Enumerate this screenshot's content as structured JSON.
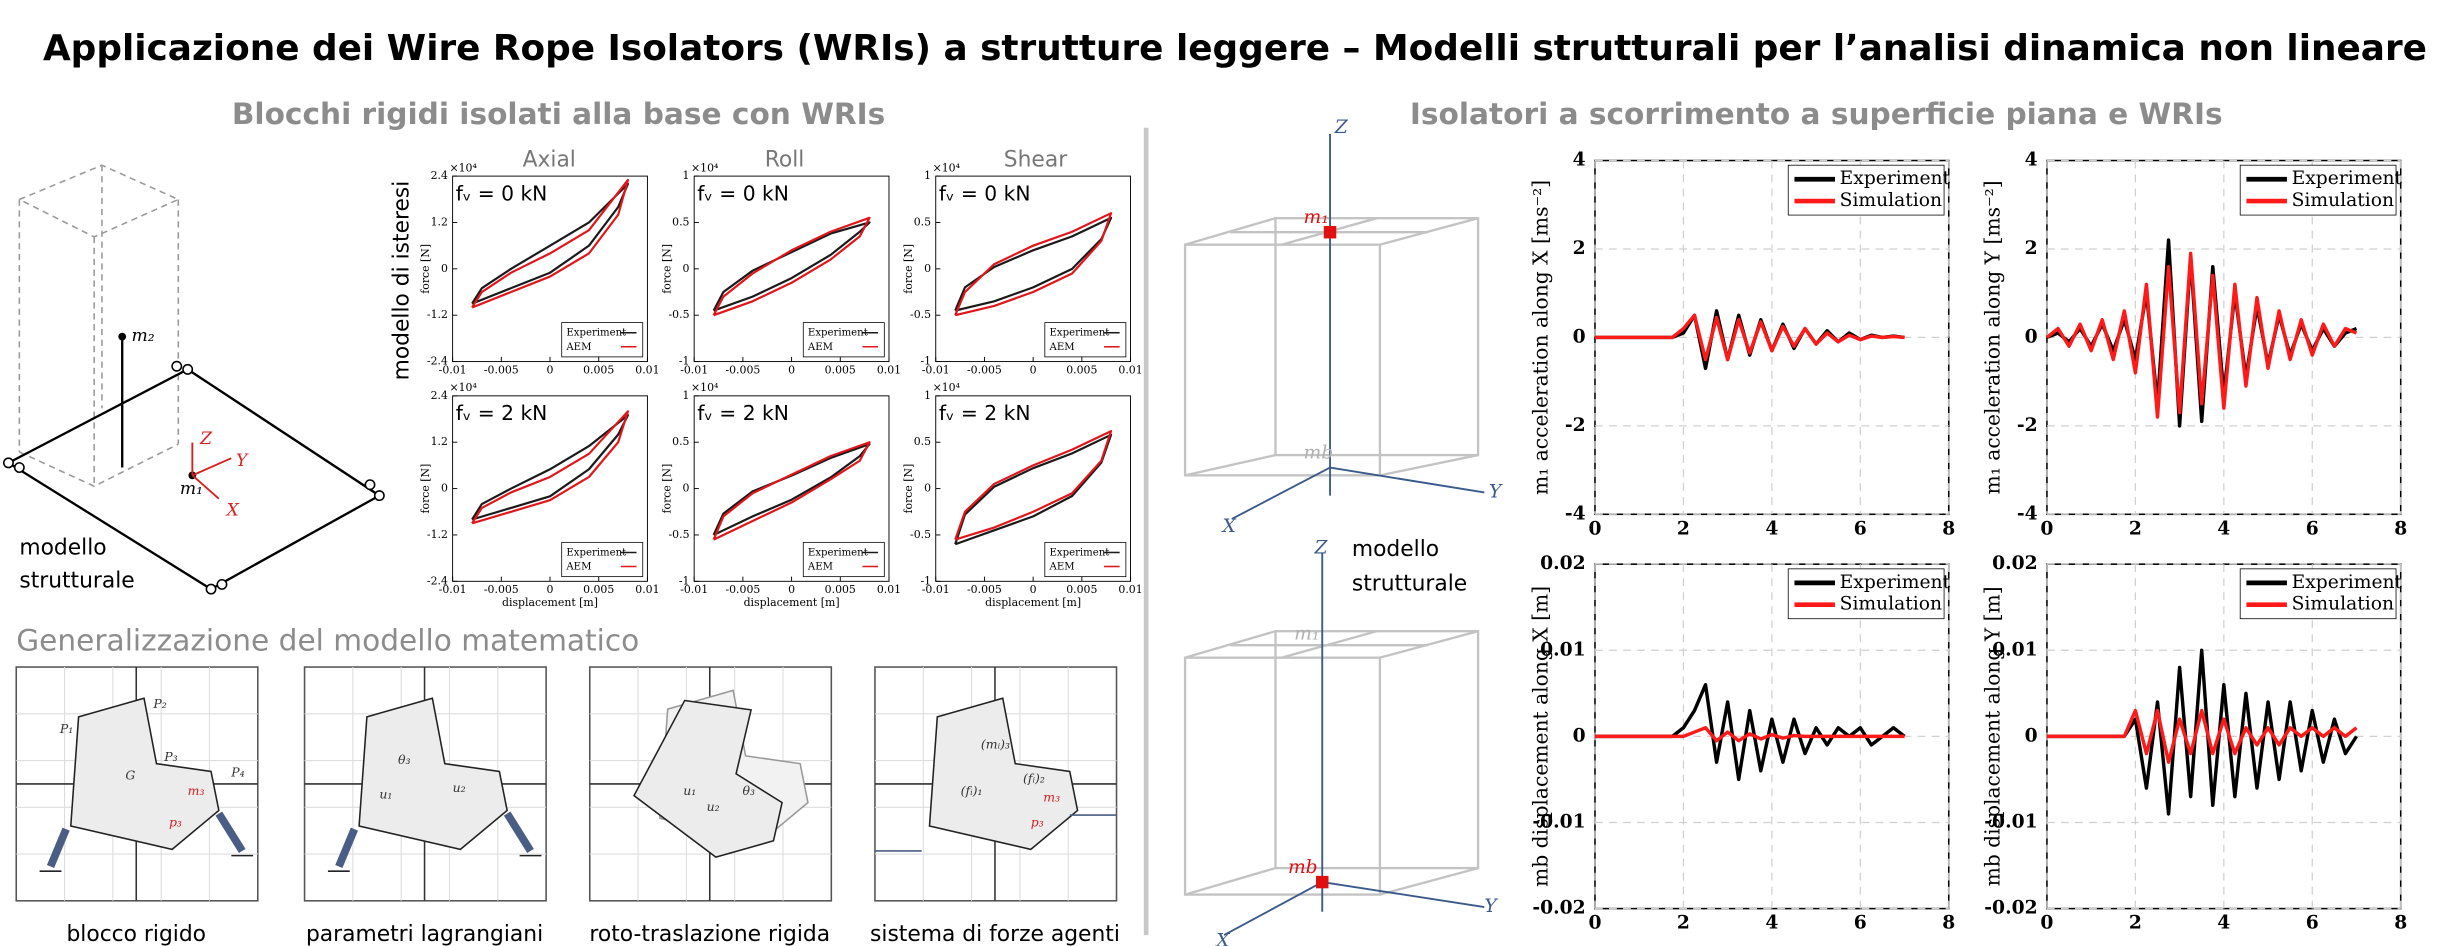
{
  "title": "Applicazione dei Wire Rope Isolators (WRIs) a strutture leggere – Modelli strutturali per l’analisi dinamica non lineare",
  "left": {
    "heading": "Blocchi rigidi isolati alla base con WRIs",
    "model_label": [
      "modello",
      "strutturale"
    ],
    "structure_labels": [
      "m₂",
      "m₁",
      "Z",
      "Y",
      "X"
    ],
    "hysteresis_label": "modello di isteresi",
    "columns": [
      "Axial",
      "Roll",
      "Shear"
    ],
    "plots": [
      {
        "type": "line",
        "label": "fᵥ = 0 kN",
        "exponent": "×10⁴",
        "ylabel": "force [N]",
        "xlim": [
          -0.01,
          0.01
        ],
        "xticks": [
          -0.01,
          -0.005,
          0,
          0.005,
          0.01
        ],
        "ylim": [
          -2.4,
          2.4
        ],
        "yticks": [
          -2.4,
          -1.2,
          0,
          1.2,
          2.4
        ],
        "x": [
          -0.008,
          -0.004,
          0,
          0.004,
          0.007,
          0.008,
          0.004,
          0,
          -0.004,
          -0.007,
          -0.008
        ],
        "series": [
          {
            "name": "Experiment",
            "color": "#1a1a1a",
            "values": [
              -0.9,
              -0.5,
              -0.1,
              0.6,
              1.6,
              2.2,
              1.2,
              0.6,
              0,
              -0.5,
              -0.9
            ]
          },
          {
            "name": "AEM",
            "color": "#e0161b",
            "values": [
              -1.0,
              -0.6,
              -0.2,
              0.4,
              1.4,
              2.3,
              1.0,
              0.4,
              -0.1,
              -0.6,
              -1.0
            ]
          }
        ]
      },
      {
        "type": "line",
        "label": "fᵥ = 0 kN",
        "exponent": "×10⁴",
        "ylabel": "force [N]",
        "xlim": [
          -0.01,
          0.01
        ],
        "xticks": [
          -0.01,
          -0.005,
          0,
          0.005,
          0.01
        ],
        "ylim": [
          -1,
          1
        ],
        "yticks": [
          -1,
          -0.5,
          0,
          0.5,
          1
        ],
        "x": [
          -0.008,
          -0.004,
          0,
          0.004,
          0.007,
          0.008,
          0.004,
          0,
          -0.004,
          -0.007,
          -0.008
        ],
        "series": [
          {
            "name": "Experiment",
            "color": "#1a1a1a",
            "values": [
              -0.45,
              -0.3,
              -0.1,
              0.15,
              0.4,
              0.5,
              0.38,
              0.18,
              -0.02,
              -0.25,
              -0.45
            ]
          },
          {
            "name": "AEM",
            "color": "#e0161b",
            "values": [
              -0.5,
              -0.35,
              -0.15,
              0.1,
              0.35,
              0.55,
              0.4,
              0.2,
              -0.05,
              -0.3,
              -0.5
            ]
          }
        ]
      },
      {
        "type": "line",
        "label": "fᵥ = 0 kN",
        "exponent": "×10⁴",
        "ylabel": "force [N]",
        "xlim": [
          -0.01,
          0.01
        ],
        "xticks": [
          -0.01,
          -0.005,
          0,
          0.005,
          0.01
        ],
        "ylim": [
          -1,
          1
        ],
        "yticks": [
          -1,
          -0.5,
          0,
          0.5,
          1
        ],
        "x": [
          -0.008,
          -0.004,
          0,
          0.004,
          0.007,
          0.008,
          0.004,
          0,
          -0.004,
          -0.007,
          -0.008
        ],
        "series": [
          {
            "name": "Experiment",
            "color": "#1a1a1a",
            "values": [
              -0.45,
              -0.35,
              -0.2,
              0,
              0.32,
              0.55,
              0.35,
              0.2,
              0.02,
              -0.2,
              -0.45
            ]
          },
          {
            "name": "AEM",
            "color": "#e0161b",
            "values": [
              -0.5,
              -0.4,
              -0.25,
              -0.05,
              0.3,
              0.6,
              0.4,
              0.25,
              0.05,
              -0.25,
              -0.5
            ]
          }
        ]
      },
      {
        "type": "line",
        "label": "fᵥ = 2 kN",
        "exponent": "×10⁴",
        "ylabel": "force [N]",
        "xlabel": "displacement [m]",
        "xlim": [
          -0.01,
          0.01
        ],
        "xticks": [
          -0.01,
          -0.005,
          0,
          0.005,
          0.01
        ],
        "ylim": [
          -2.4,
          2.4
        ],
        "yticks": [
          -2.4,
          -1.2,
          0,
          1.2,
          2.4
        ],
        "x": [
          -0.008,
          -0.004,
          0,
          0.004,
          0.007,
          0.008,
          0.004,
          0,
          -0.004,
          -0.007,
          -0.008
        ],
        "series": [
          {
            "name": "Experiment",
            "color": "#1a1a1a",
            "values": [
              -0.8,
              -0.5,
              -0.2,
              0.5,
              1.4,
              1.9,
              1.1,
              0.5,
              0,
              -0.4,
              -0.8
            ]
          },
          {
            "name": "AEM",
            "color": "#e0161b",
            "values": [
              -0.9,
              -0.6,
              -0.3,
              0.3,
              1.2,
              2.0,
              0.9,
              0.3,
              -0.1,
              -0.5,
              -0.9
            ]
          }
        ]
      },
      {
        "type": "line",
        "label": "fᵥ = 2 kN",
        "exponent": "×10⁴",
        "ylabel": "force [N]",
        "xlabel": "displacement [m]",
        "xlim": [
          -0.01,
          0.01
        ],
        "xticks": [
          -0.01,
          -0.005,
          0,
          0.005,
          0.01
        ],
        "ylim": [
          -1,
          1
        ],
        "yticks": [
          -1,
          -0.5,
          0,
          0.5,
          1
        ],
        "x": [
          -0.008,
          -0.004,
          0,
          0.004,
          0.007,
          0.008,
          0.004,
          0,
          -0.004,
          -0.007,
          -0.008
        ],
        "series": [
          {
            "name": "Experiment",
            "color": "#1a1a1a",
            "values": [
              -0.5,
              -0.3,
              -0.12,
              0.12,
              0.35,
              0.48,
              0.33,
              0.14,
              -0.03,
              -0.27,
              -0.5
            ]
          },
          {
            "name": "AEM",
            "color": "#e0161b",
            "values": [
              -0.55,
              -0.35,
              -0.15,
              0.1,
              0.3,
              0.5,
              0.35,
              0.15,
              -0.05,
              -0.3,
              -0.55
            ]
          }
        ]
      },
      {
        "type": "line",
        "label": "fᵥ = 2 kN",
        "exponent": "×10⁴",
        "ylabel": "force [N]",
        "xlabel": "displacement [m]",
        "xlim": [
          -0.01,
          0.01
        ],
        "xticks": [
          -0.01,
          -0.005,
          0,
          0.005,
          0.01
        ],
        "ylim": [
          -1,
          1
        ],
        "yticks": [
          -1,
          -0.5,
          0,
          0.5,
          1
        ],
        "x": [
          -0.008,
          -0.004,
          0,
          0.004,
          0.007,
          0.008,
          0.004,
          0,
          -0.004,
          -0.007,
          -0.008
        ],
        "series": [
          {
            "name": "Experiment",
            "color": "#1a1a1a",
            "values": [
              -0.6,
              -0.45,
              -0.3,
              -0.08,
              0.28,
              0.58,
              0.38,
              0.22,
              0.02,
              -0.28,
              -0.6
            ]
          },
          {
            "name": "AEM",
            "color": "#e0161b",
            "values": [
              -0.55,
              -0.42,
              -0.25,
              -0.05,
              0.3,
              0.62,
              0.42,
              0.25,
              0.05,
              -0.25,
              -0.55
            ]
          }
        ]
      }
    ],
    "generalization": {
      "heading": "Generalizzazione del modello matematico",
      "diagrams": [
        {
          "caption": "blocco rigido",
          "labels": [
            "P₁",
            "P₂",
            "P₃",
            "P₄",
            "G",
            "m₃",
            "p₃"
          ]
        },
        {
          "caption": "parametri lagrangiani",
          "labels": [
            "θ₃",
            "u₁",
            "u₂"
          ]
        },
        {
          "caption": "roto-traslazione rigida",
          "labels": [
            "u₁",
            "u₂",
            "θ₃"
          ]
        },
        {
          "caption": "sistema di forze agenti",
          "labels": [
            "(mᵢ)₃",
            "(fᵢ)₁",
            "(fᵢ)₂",
            "m₃",
            "p₃"
          ]
        }
      ]
    }
  },
  "right": {
    "heading": "Isolatori a scorrimento a superficie piana e WRIs",
    "model_label": [
      "modello",
      "strutturale"
    ],
    "frame_labels": [
      "Z",
      "X",
      "Y",
      "m₁",
      "mb"
    ],
    "charts": [
      {
        "type": "line",
        "ylabel": "m₁ acceleration along X [ms⁻²]",
        "legend": "upper right",
        "grid": true,
        "xlim": [
          0,
          8
        ],
        "xticks": [
          0,
          2,
          4,
          6,
          8
        ],
        "ylim": [
          -4,
          4
        ],
        "yticks": [
          -4,
          -2,
          0,
          2,
          4
        ],
        "x": [
          0,
          0.25,
          0.5,
          0.75,
          1,
          1.25,
          1.5,
          1.75,
          2,
          2.25,
          2.5,
          2.75,
          3,
          3.25,
          3.5,
          3.75,
          4,
          4.25,
          4.5,
          4.75,
          5,
          5.25,
          5.5,
          5.75,
          6,
          6.25,
          6.5,
          6.75,
          7
        ],
        "series": [
          {
            "name": "Experiment",
            "color": "#000000",
            "values": [
              0,
              0,
              0,
              0,
              0,
              0,
              0,
              0,
              0.1,
              0.5,
              -0.7,
              0.6,
              -0.5,
              0.5,
              -0.4,
              0.4,
              -0.3,
              0.3,
              -0.25,
              0.2,
              -0.15,
              0.15,
              -0.1,
              0.1,
              -0.05,
              0.05,
              0,
              0.03,
              0
            ]
          },
          {
            "name": "Simulation",
            "color": "#ff1a1a",
            "values": [
              0,
              0,
              0,
              0,
              0,
              0,
              0,
              0,
              0.2,
              0.5,
              -0.5,
              0.45,
              -0.5,
              0.4,
              -0.35,
              0.35,
              -0.3,
              0.25,
              -0.2,
              0.2,
              -0.15,
              0.1,
              -0.1,
              0.05,
              -0.05,
              0.03,
              0,
              0.02,
              0
            ]
          }
        ]
      },
      {
        "type": "line",
        "ylabel": "m₁ acceleration along Y [ms⁻²]",
        "legend": "upper right",
        "grid": true,
        "xlim": [
          0,
          8
        ],
        "xticks": [
          0,
          2,
          4,
          6,
          8
        ],
        "ylim": [
          -4,
          4
        ],
        "yticks": [
          -4,
          -2,
          0,
          2,
          4
        ],
        "x": [
          0,
          0.25,
          0.5,
          0.75,
          1,
          1.25,
          1.5,
          1.75,
          2,
          2.25,
          2.5,
          2.75,
          3,
          3.25,
          3.5,
          3.75,
          4,
          4.25,
          4.5,
          4.75,
          5,
          5.25,
          5.5,
          5.75,
          6,
          6.25,
          6.5,
          6.75,
          7
        ],
        "series": [
          {
            "name": "Experiment",
            "color": "#000000",
            "values": [
              0,
              0.1,
              -0.1,
              0.2,
              -0.2,
              0.3,
              -0.3,
              0.4,
              -0.5,
              1.0,
              -1.5,
              2.2,
              -2.0,
              1.8,
              -1.9,
              1.6,
              -1.3,
              1.0,
              -0.9,
              0.7,
              -0.6,
              0.5,
              -0.4,
              0.3,
              -0.3,
              0.2,
              -0.2,
              0.1,
              0.2
            ]
          },
          {
            "name": "Simulation",
            "color": "#ff1a1a",
            "values": [
              0,
              0.2,
              -0.2,
              0.3,
              -0.3,
              0.4,
              -0.5,
              0.6,
              -0.8,
              1.2,
              -1.8,
              1.6,
              -1.7,
              1.9,
              -1.5,
              1.4,
              -1.6,
              1.2,
              -1.1,
              0.9,
              -0.7,
              0.6,
              -0.5,
              0.4,
              -0.4,
              0.3,
              -0.2,
              0.2,
              0.1
            ]
          }
        ]
      },
      {
        "type": "line",
        "ylabel": "mb displacement along X [m]",
        "legend": "upper right",
        "grid": true,
        "xlim": [
          0,
          8
        ],
        "xticks": [
          0,
          2,
          4,
          6,
          8
        ],
        "ylim": [
          -0.02,
          0.02
        ],
        "yticks": [
          -0.02,
          -0.01,
          0,
          0.01,
          0.02
        ],
        "x": [
          0,
          0.25,
          0.5,
          0.75,
          1,
          1.25,
          1.5,
          1.75,
          2,
          2.25,
          2.5,
          2.75,
          3,
          3.25,
          3.5,
          3.75,
          4,
          4.25,
          4.5,
          4.75,
          5,
          5.25,
          5.5,
          5.75,
          6,
          6.25,
          6.5,
          6.75,
          7
        ],
        "series": [
          {
            "name": "Experiment",
            "color": "#000000",
            "values": [
              0,
              0,
              0,
              0,
              0,
              0,
              0,
              0,
              0.001,
              0.003,
              0.006,
              -0.003,
              0.004,
              -0.005,
              0.003,
              -0.004,
              0.002,
              -0.003,
              0.002,
              -0.002,
              0.001,
              -0.001,
              0.001,
              0,
              0.001,
              -0.001,
              0,
              0.001,
              0
            ]
          },
          {
            "name": "Simulation",
            "color": "#ff1a1a",
            "values": [
              0,
              0,
              0,
              0,
              0,
              0,
              0,
              0,
              0,
              0.0005,
              0.001,
              -0.0005,
              0.0005,
              -0.0005,
              0.0003,
              -0.0003,
              0.0002,
              -0.0002,
              0.0001,
              0,
              0,
              0,
              0,
              0,
              0,
              0,
              0,
              0,
              0
            ]
          }
        ]
      },
      {
        "type": "line",
        "ylabel": "mb displacement along Y [m]",
        "legend": "upper right",
        "grid": true,
        "xlim": [
          0,
          8
        ],
        "xticks": [
          0,
          2,
          4,
          6,
          8
        ],
        "ylim": [
          -0.02,
          0.02
        ],
        "yticks": [
          -0.02,
          -0.01,
          0,
          0.01,
          0.02
        ],
        "x": [
          0,
          0.25,
          0.5,
          0.75,
          1,
          1.25,
          1.5,
          1.75,
          2,
          2.25,
          2.5,
          2.75,
          3,
          3.25,
          3.5,
          3.75,
          4,
          4.25,
          4.5,
          4.75,
          5,
          5.25,
          5.5,
          5.75,
          6,
          6.25,
          6.5,
          6.75,
          7
        ],
        "series": [
          {
            "name": "Experiment",
            "color": "#000000",
            "values": [
              0,
              0,
              0,
              0,
              0,
              0,
              0,
              0,
              0.002,
              -0.006,
              0.004,
              -0.009,
              0.008,
              -0.007,
              0.01,
              -0.008,
              0.006,
              -0.007,
              0.005,
              -0.006,
              0.004,
              -0.005,
              0.004,
              -0.004,
              0.003,
              -0.003,
              0.002,
              -0.002,
              0
            ]
          },
          {
            "name": "Simulation",
            "color": "#ff1a1a",
            "values": [
              0,
              0,
              0,
              0,
              0,
              0,
              0,
              0,
              0.003,
              -0.002,
              0.003,
              -0.003,
              0.002,
              -0.002,
              0.003,
              -0.002,
              0.002,
              -0.002,
              0.001,
              -0.001,
              0.001,
              -0.001,
              0.001,
              0,
              0.001,
              0,
              0.001,
              0,
              0.001
            ]
          }
        ]
      }
    ]
  }
}
